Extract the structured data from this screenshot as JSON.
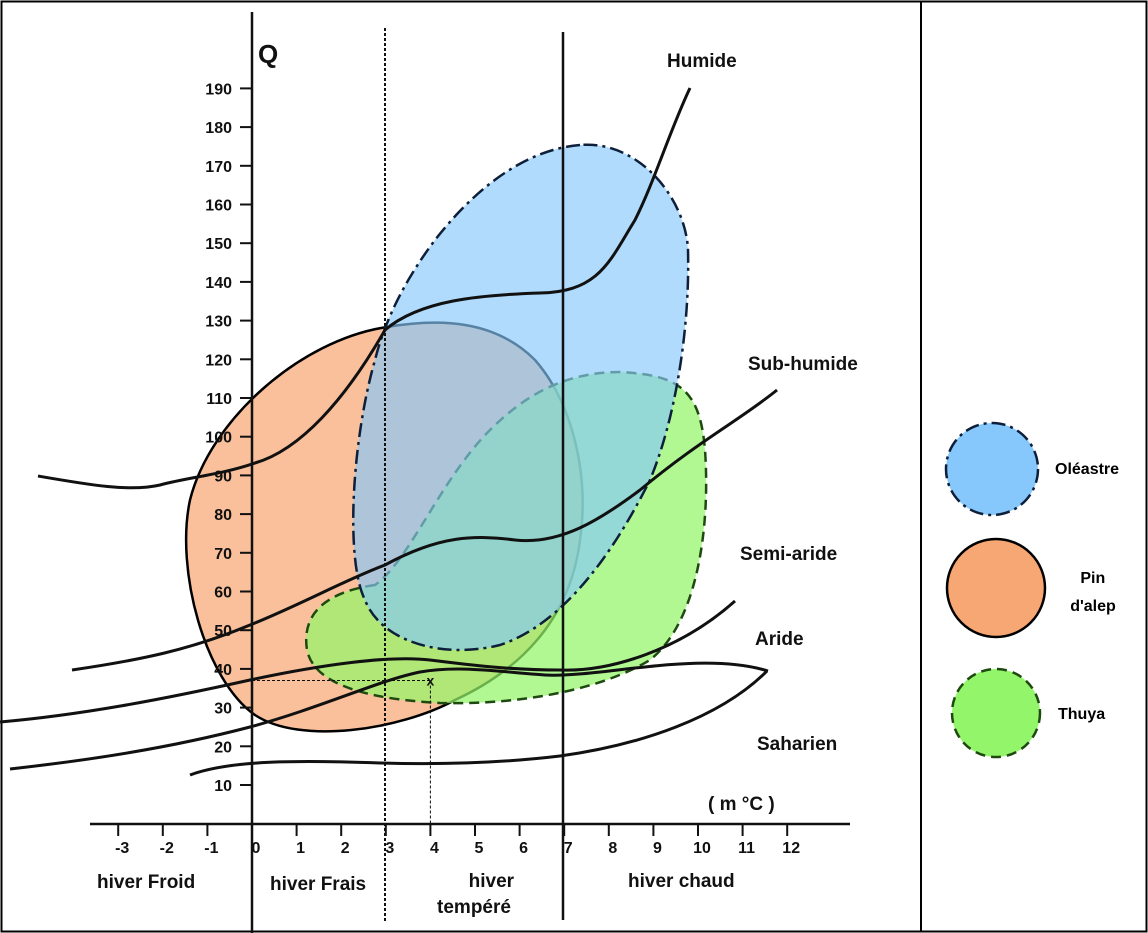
{
  "colors": {
    "oleastre": "#86c8fb",
    "pin_alep": "#f7a774",
    "thuya": "#93f56a",
    "lines": "#111111"
  },
  "chart_data": {
    "type": "diagram",
    "y_axis_label": "Q",
    "x_axis_label": "( m °C )",
    "y_ticks": [
      "10",
      "20",
      "30",
      "40",
      "50",
      "60",
      "70",
      "80",
      "90",
      "100",
      "110",
      "120",
      "130",
      "140",
      "150",
      "160",
      "170",
      "180",
      "190"
    ],
    "x_ticks": [
      "-3",
      "-2",
      "-1",
      "0",
      "1",
      "2",
      "3",
      "4",
      "5",
      "6",
      "7",
      "8",
      "9",
      "10",
      "11",
      "12"
    ],
    "xlim": [
      -3,
      12
    ],
    "ylim": [
      10,
      190
    ],
    "winter_boundaries": [
      0,
      3,
      7
    ],
    "winter_zones": [
      {
        "label": "hiver Froid"
      },
      {
        "label": "hiver Frais"
      },
      {
        "label": "hiver tempéré"
      },
      {
        "label": "hiver chaud"
      }
    ],
    "bioclimate_zones": [
      "Humide",
      "Sub-humide",
      "Semi-aride",
      "Aride",
      "Saharien"
    ],
    "marker": {
      "label": "x",
      "m": 4,
      "Q": 37
    }
  },
  "legend": [
    {
      "label": "Oléastre",
      "key": "oleastre",
      "dash": "dashdot"
    },
    {
      "label": "Pin d'alep",
      "key": "pin_alep",
      "dash": "solid"
    },
    {
      "label": "Thuya",
      "key": "thuya",
      "dash": "dashed"
    }
  ]
}
